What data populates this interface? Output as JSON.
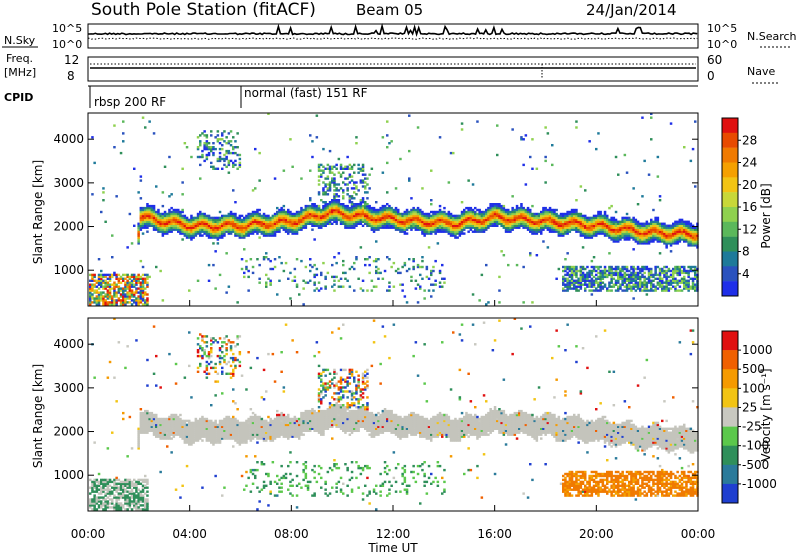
{
  "header": {
    "title": "South Pole Station (fitACF)",
    "beam": "Beam 05",
    "date": "24/Jan/2014"
  },
  "status": {
    "nsky_label": "N.Sky",
    "nsearch_label": "N.Search",
    "freq_label_line1": "Freq.",
    "freq_label_line2": "[MHz]",
    "nave_label": "Nave",
    "cpid_label": "CPID",
    "nsky_ticks": [
      "10^5",
      "10^0"
    ],
    "nsearch_ticks": [
      "10^5",
      "10^0"
    ],
    "freq_ticks": [
      "12",
      "8"
    ],
    "nave_ticks": [
      "60",
      "0"
    ],
    "modes": [
      {
        "label": "rbsp 200 RF",
        "start_hour": 0,
        "end_hour": 6
      },
      {
        "label": "normal (fast) 151 RF",
        "start_hour": 6,
        "end_hour": 24
      }
    ]
  },
  "chart_data": [
    {
      "type": "heatmap",
      "name": "power",
      "xlabel": "",
      "ylabel": "Slant Range [km]",
      "x_range_hours": [
        0,
        24
      ],
      "ylim": [
        180,
        4600
      ],
      "y_ticks": [
        1000,
        2000,
        3000,
        4000
      ],
      "colorbar": {
        "label": "Power [dB]",
        "ticks": [
          4,
          8,
          12,
          16,
          20,
          24,
          28
        ],
        "colors": [
          "#1f2fe8",
          "#2a52be",
          "#1e7a9a",
          "#2f8f5a",
          "#5bb85b",
          "#8fd14f",
          "#c8d838",
          "#f2c414",
          "#f5a000",
          "#f07a00",
          "#e84a00",
          "#e01010"
        ]
      },
      "bands": [
        {
          "desc": "main",
          "x0": 1.9,
          "x1": 24,
          "y_center": [
            [
              2,
              2200
            ],
            [
              4,
              2000
            ],
            [
              6,
              2000
            ],
            [
              8,
              2100
            ],
            [
              9.5,
              2300
            ],
            [
              11,
              2200
            ],
            [
              13,
              2100
            ],
            [
              14.5,
              2050
            ],
            [
              16,
              2200
            ],
            [
              18,
              2100
            ],
            [
              20,
              2000
            ],
            [
              22,
              1850
            ],
            [
              24,
              1800
            ]
          ],
          "width": 420
        }
      ]
    },
    {
      "type": "heatmap",
      "name": "velocity",
      "xlabel": "Time UT",
      "ylabel": "Slant Range [km]",
      "x_range_hours": [
        0,
        24
      ],
      "ylim": [
        180,
        4600
      ],
      "y_ticks": [
        1000,
        2000,
        3000,
        4000
      ],
      "x_ticks": [
        "00:00",
        "04:00",
        "08:00",
        "12:00",
        "16:00",
        "20:00",
        "00:00"
      ],
      "colorbar": {
        "label": "Velocity [m s⁻¹]",
        "ticks": [
          1000,
          500,
          100,
          25,
          -25,
          -100,
          -500,
          -1000
        ],
        "colors": [
          "#1f3fd0",
          "#2a7a9a",
          "#2f8f5a",
          "#5bc84b",
          "#c8c8c0",
          "#f2c414",
          "#f59a00",
          "#f06000",
          "#e01010"
        ]
      }
    }
  ]
}
